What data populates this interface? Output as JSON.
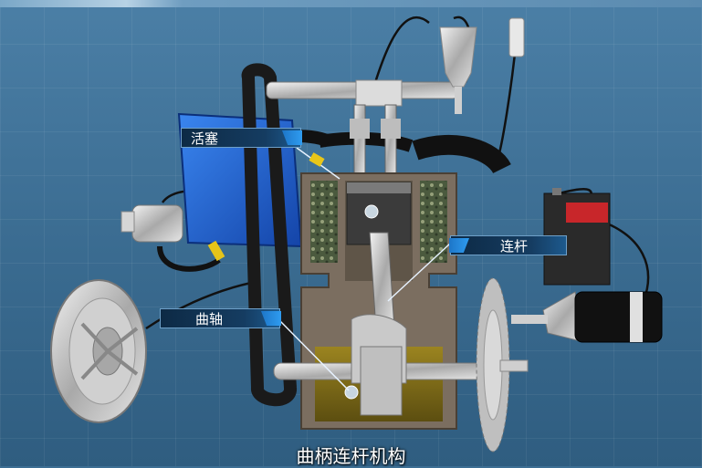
{
  "labels": {
    "piston": "活塞",
    "connecting_rod": "连杆",
    "crankshaft": "曲轴"
  },
  "subtitle": "曲柄连杆机构",
  "colors": {
    "background": "#3d6f94",
    "callout_bg": "#153c61",
    "callout_accent": "#2f9cf0",
    "cooling_tank": "#1f5fd1",
    "engine_block": "#7d6f60",
    "oil": "#8a7418"
  },
  "icon_names": [
    "flywheel-icon",
    "pump-icon",
    "injector-icon",
    "sensor-icon",
    "battery-icon",
    "starter-motor-icon",
    "gear-icon"
  ]
}
